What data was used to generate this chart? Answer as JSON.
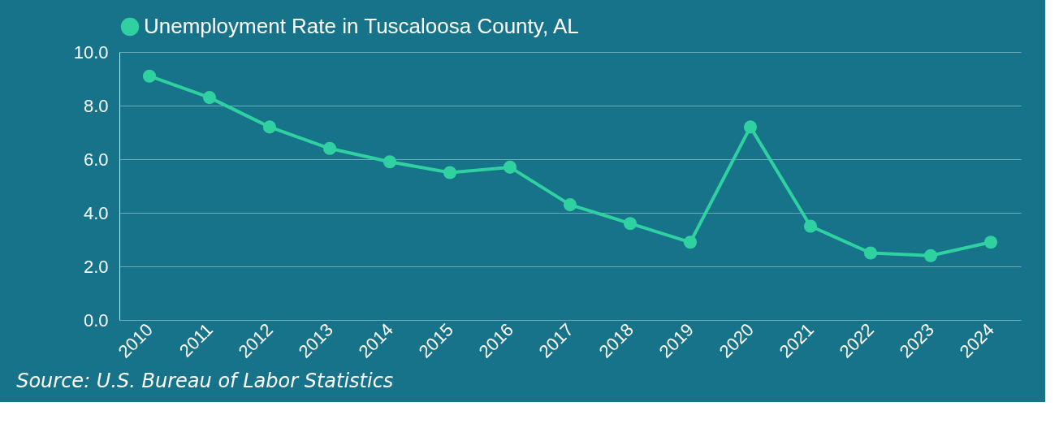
{
  "chart_data": {
    "type": "line",
    "categories": [
      "2010",
      "2011",
      "2012",
      "2013",
      "2014",
      "2015",
      "2016",
      "2017",
      "2018",
      "2019",
      "2020",
      "2021",
      "2022",
      "2023",
      "2024"
    ],
    "series": [
      {
        "name": "Unemployment Rate in Tuscaloosa County, AL",
        "color": "#2fd1a0",
        "values": [
          9.1,
          8.3,
          7.2,
          6.4,
          5.9,
          5.5,
          5.7,
          4.3,
          3.6,
          2.9,
          7.2,
          3.5,
          2.5,
          2.4,
          2.9
        ]
      }
    ],
    "ylim": [
      0,
      10
    ],
    "yticks": [
      {
        "value": 0,
        "label": "0.0"
      },
      {
        "value": 2,
        "label": "2.0"
      },
      {
        "value": 4,
        "label": "4.0"
      },
      {
        "value": 6,
        "label": "6.0"
      },
      {
        "value": 8,
        "label": "8.0"
      },
      {
        "value": 10,
        "label": "10.0"
      }
    ],
    "grid": "y",
    "legend": "top",
    "marker": "circle",
    "line_style": "solid",
    "annotations": [
      "Source: U.S. Bureau of Labor Statistics"
    ]
  }
}
